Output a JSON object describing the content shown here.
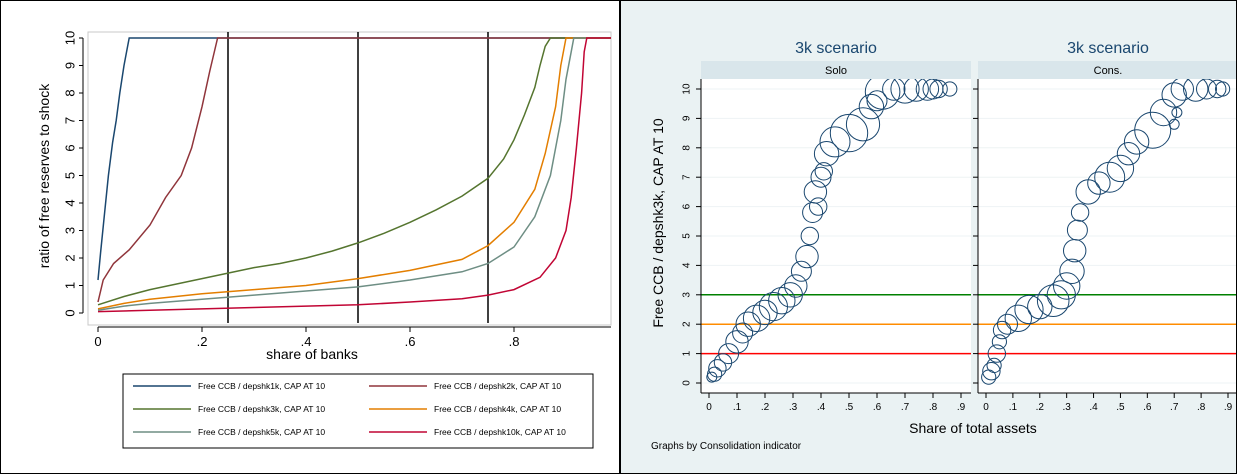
{
  "chart_data": [
    {
      "type": "line",
      "xlabel": "share of banks",
      "ylabel": "ratio of free reserves to shock",
      "xlim": [
        0,
        1
      ],
      "ylim": [
        0,
        10
      ],
      "x_ticks": [
        "0",
        ".2",
        ".4",
        ".6",
        ".8"
      ],
      "y_ticks": [
        "0",
        "1",
        "2",
        "3",
        "4",
        "5",
        "6",
        "7",
        "8",
        "9",
        "10"
      ],
      "grid": false,
      "reference_lines_x": [
        0.25,
        0.5,
        0.75
      ],
      "legend_position": "bottom",
      "series": [
        {
          "name": "Free CCB / depshk1k, CAP AT 10",
          "color": "#1a476f",
          "x": [
            0,
            0.005,
            0.012,
            0.02,
            0.028,
            0.035,
            0.042,
            0.05,
            0.056,
            0.06,
            1.0
          ],
          "y": [
            1.2,
            2.2,
            3.5,
            5.0,
            6.2,
            7.0,
            8.0,
            9.0,
            9.6,
            10,
            10
          ]
        },
        {
          "name": "Free CCB / depshk2k, CAP AT 10",
          "color": "#90353b",
          "x": [
            0,
            0.01,
            0.03,
            0.06,
            0.1,
            0.13,
            0.16,
            0.18,
            0.2,
            0.215,
            0.225,
            0.23,
            1.0
          ],
          "y": [
            0.4,
            1.2,
            1.8,
            2.3,
            3.2,
            4.2,
            5.0,
            6.0,
            7.5,
            8.8,
            9.6,
            10,
            10
          ]
        },
        {
          "name": "Free CCB / depshk3k, CAP AT 10",
          "color": "#55752f",
          "x": [
            0,
            0.05,
            0.1,
            0.15,
            0.2,
            0.25,
            0.3,
            0.35,
            0.4,
            0.45,
            0.5,
            0.55,
            0.6,
            0.65,
            0.7,
            0.75,
            0.78,
            0.8,
            0.82,
            0.84,
            0.85,
            0.86,
            0.87,
            1.0
          ],
          "y": [
            0.3,
            0.6,
            0.85,
            1.05,
            1.25,
            1.45,
            1.65,
            1.8,
            2.0,
            2.25,
            2.55,
            2.9,
            3.3,
            3.75,
            4.25,
            4.9,
            5.6,
            6.3,
            7.2,
            8.2,
            9.0,
            9.7,
            10,
            10
          ]
        },
        {
          "name": "Free CCB / depshk4k, CAP AT 10",
          "color": "#e37e00",
          "x": [
            0,
            0.05,
            0.1,
            0.2,
            0.3,
            0.4,
            0.5,
            0.6,
            0.7,
            0.75,
            0.8,
            0.84,
            0.86,
            0.88,
            0.89,
            0.9,
            1.0
          ],
          "y": [
            0.15,
            0.35,
            0.5,
            0.7,
            0.85,
            1.0,
            1.25,
            1.55,
            1.95,
            2.45,
            3.3,
            4.5,
            5.8,
            7.5,
            9.0,
            10,
            10
          ]
        },
        {
          "name": "Free CCB / depshk5k, CAP AT 10",
          "color": "#6e8e84",
          "x": [
            0,
            0.05,
            0.1,
            0.2,
            0.3,
            0.4,
            0.5,
            0.6,
            0.7,
            0.75,
            0.8,
            0.84,
            0.87,
            0.89,
            0.9,
            0.91,
            0.915,
            1.0
          ],
          "y": [
            0.1,
            0.25,
            0.35,
            0.5,
            0.65,
            0.8,
            0.95,
            1.2,
            1.5,
            1.8,
            2.4,
            3.5,
            5.0,
            7.0,
            8.5,
            9.5,
            10,
            10
          ]
        },
        {
          "name": "Free CCB / depshk10k, CAP AT 10",
          "color": "#c10534",
          "x": [
            0,
            0.1,
            0.2,
            0.3,
            0.4,
            0.5,
            0.6,
            0.7,
            0.75,
            0.8,
            0.85,
            0.88,
            0.9,
            0.91,
            0.92,
            0.93,
            0.935,
            0.94,
            1.0
          ],
          "y": [
            0.05,
            0.1,
            0.15,
            0.2,
            0.25,
            0.3,
            0.4,
            0.52,
            0.65,
            0.85,
            1.3,
            2.0,
            3.0,
            4.2,
            6.0,
            8.0,
            9.5,
            10,
            10
          ]
        }
      ]
    },
    {
      "type": "scatter",
      "xlabel": "Share of total assets",
      "ylabel": "Free CCB / depshk3k, CAP AT 10",
      "note": "Graphs by Consolidation indicator",
      "xlim": [
        0,
        0.9
      ],
      "ylim": [
        0,
        10
      ],
      "x_ticks": [
        "0",
        ".1",
        ".2",
        ".3",
        ".4",
        ".5",
        ".6",
        ".7",
        ".8",
        ".9"
      ],
      "y_ticks": [
        "0",
        "1",
        "2",
        "3",
        "4",
        "5",
        "6",
        "7",
        "8",
        "9",
        "10"
      ],
      "reference_lines_y": [
        {
          "value": 1,
          "color": "#ff0000"
        },
        {
          "value": 2,
          "color": "#ff8c00"
        },
        {
          "value": 3,
          "color": "#008000"
        }
      ],
      "marker": "hollow circle, size by weight",
      "marker_color": "#1a476f",
      "panels": [
        {
          "title": "3k scenario",
          "subtitle": "Solo",
          "points": [
            [
              0.01,
              0.2,
              1
            ],
            [
              0.02,
              0.3,
              2
            ],
            [
              0.03,
              0.5,
              3
            ],
            [
              0.05,
              0.7,
              3
            ],
            [
              0.07,
              1.0,
              4
            ],
            [
              0.1,
              1.4,
              5
            ],
            [
              0.12,
              1.7,
              4
            ],
            [
              0.14,
              2.0,
              6
            ],
            [
              0.17,
              2.2,
              7
            ],
            [
              0.2,
              2.4,
              6
            ],
            [
              0.23,
              2.6,
              8
            ],
            [
              0.26,
              2.8,
              7
            ],
            [
              0.29,
              3.0,
              6
            ],
            [
              0.31,
              3.3,
              5
            ],
            [
              0.33,
              3.8,
              4
            ],
            [
              0.35,
              4.3,
              5
            ],
            [
              0.36,
              5.0,
              3
            ],
            [
              0.37,
              5.8,
              4
            ],
            [
              0.38,
              6.5,
              5
            ],
            [
              0.4,
              7.0,
              4
            ],
            [
              0.42,
              7.8,
              6
            ],
            [
              0.45,
              8.2,
              9
            ],
            [
              0.5,
              8.5,
              14
            ],
            [
              0.55,
              8.8,
              11
            ],
            [
              0.58,
              9.4,
              6
            ],
            [
              0.62,
              9.9,
              12
            ],
            [
              0.66,
              10,
              5
            ],
            [
              0.7,
              10,
              8
            ],
            [
              0.74,
              10,
              6
            ],
            [
              0.78,
              10,
              5
            ],
            [
              0.8,
              10,
              4
            ],
            [
              0.82,
              10,
              3
            ],
            [
              0.86,
              10,
              2
            ],
            [
              0.39,
              6.0,
              3
            ],
            [
              0.41,
              7.2,
              3
            ],
            [
              0.6,
              9.6,
              4
            ]
          ]
        },
        {
          "title": "3k scenario",
          "subtitle": "Cons.",
          "points": [
            [
              0.01,
              0.2,
              2
            ],
            [
              0.02,
              0.4,
              3
            ],
            [
              0.03,
              0.6,
              2
            ],
            [
              0.04,
              1.0,
              3
            ],
            [
              0.05,
              1.4,
              2
            ],
            [
              0.06,
              1.8,
              3
            ],
            [
              0.08,
              2.0,
              4
            ],
            [
              0.12,
              2.2,
              7
            ],
            [
              0.16,
              2.5,
              8
            ],
            [
              0.2,
              2.6,
              6
            ],
            [
              0.25,
              2.8,
              10
            ],
            [
              0.28,
              3.0,
              8
            ],
            [
              0.3,
              3.3,
              7
            ],
            [
              0.32,
              3.8,
              6
            ],
            [
              0.33,
              4.5,
              5
            ],
            [
              0.34,
              5.2,
              4
            ],
            [
              0.35,
              5.8,
              3
            ],
            [
              0.38,
              6.5,
              6
            ],
            [
              0.42,
              6.8,
              5
            ],
            [
              0.46,
              7.0,
              9
            ],
            [
              0.5,
              7.3,
              7
            ],
            [
              0.53,
              7.8,
              5
            ],
            [
              0.56,
              8.2,
              6
            ],
            [
              0.62,
              8.6,
              13
            ],
            [
              0.66,
              9.2,
              7
            ],
            [
              0.7,
              9.8,
              6
            ],
            [
              0.73,
              10,
              5
            ],
            [
              0.78,
              10,
              6
            ],
            [
              0.82,
              10,
              4
            ],
            [
              0.86,
              10,
              3
            ],
            [
              0.88,
              10,
              2
            ],
            [
              0.7,
              8.8,
              1
            ],
            [
              0.71,
              9.2,
              1
            ]
          ]
        }
      ]
    }
  ]
}
